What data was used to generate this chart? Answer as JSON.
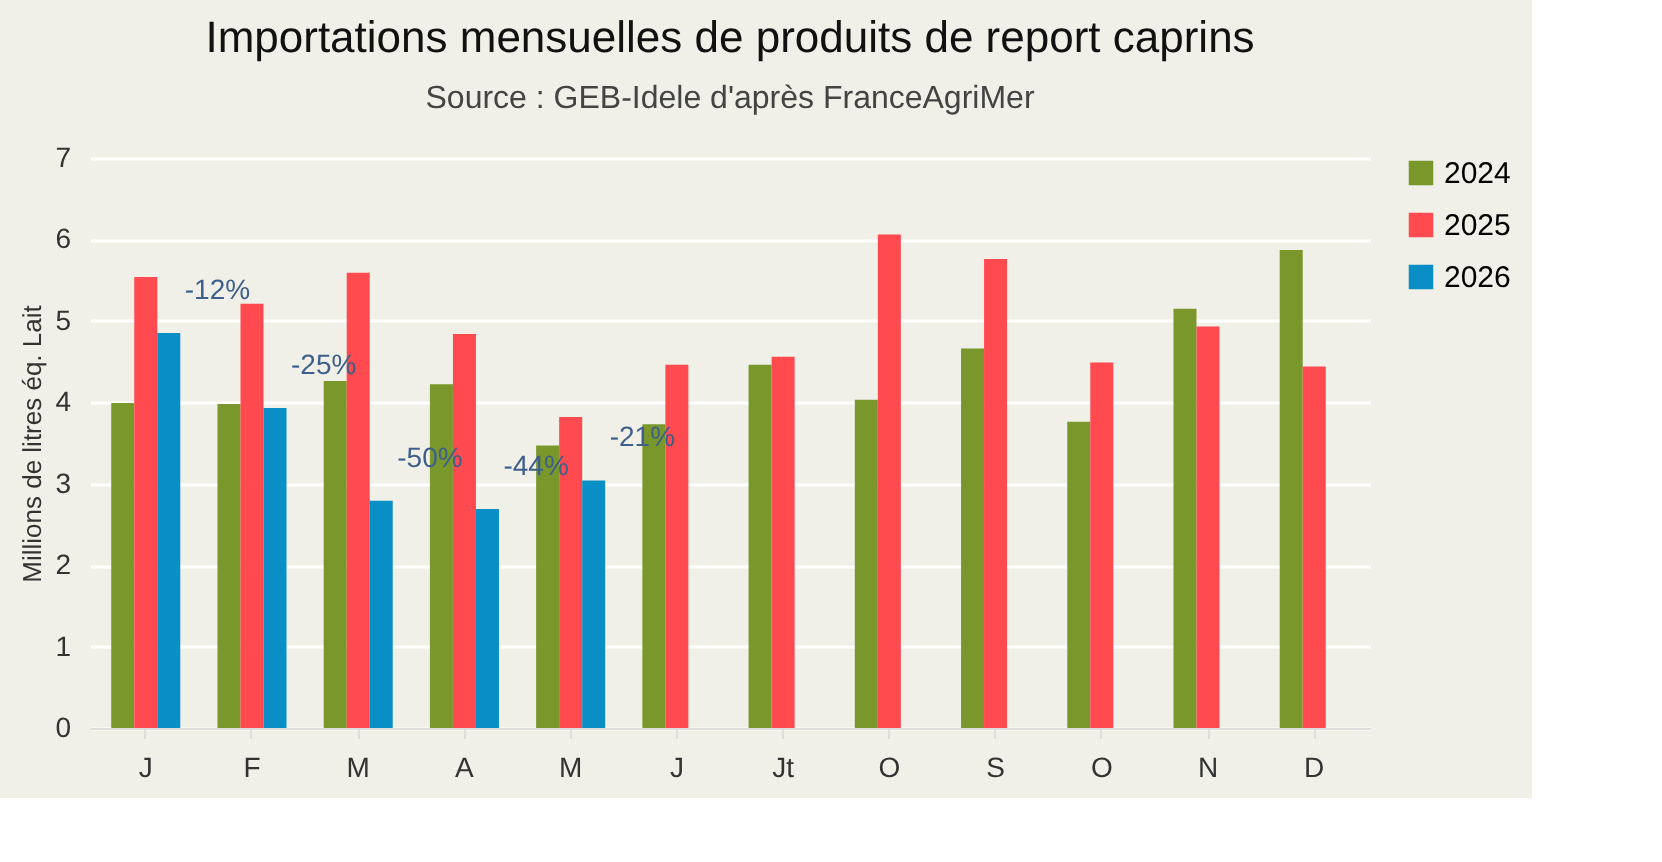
{
  "chart_data": {
    "type": "bar",
    "title": "Importations mensuelles de produits de report caprins",
    "subtitle": "Source : GEB-Idele d'après FranceAgriMer",
    "ylabel": "Millions de litres éq. Lait",
    "categories": [
      "J",
      "F",
      "M",
      "A",
      "M",
      "J",
      "Jt",
      "O",
      "S",
      "O",
      "N",
      "D"
    ],
    "series": [
      {
        "name": "2024",
        "color": "#7a972b",
        "values": [
          3.99,
          3.98,
          4.26,
          4.22,
          3.47,
          3.73,
          4.46,
          4.03,
          4.66,
          3.76,
          5.15,
          5.87
        ]
      },
      {
        "name": "2025",
        "color": "#ff4a50",
        "values": [
          5.54,
          5.21,
          5.59,
          4.84,
          3.82,
          4.46,
          4.56,
          6.06,
          5.76,
          4.49,
          4.93,
          4.44
        ]
      },
      {
        "name": "2026",
        "color": "#0a8ec6",
        "values": [
          4.85,
          3.93,
          2.79,
          2.69,
          3.04,
          null,
          null,
          null,
          null,
          null,
          null,
          null
        ]
      }
    ],
    "annotations": [
      "-12%",
      "-25%",
      "-50%",
      "-44%",
      "-21%"
    ],
    "ylim": [
      0,
      7
    ],
    "yticks": [
      0,
      1,
      2,
      3,
      4,
      5,
      6,
      7
    ],
    "grid": "y",
    "legend": "right"
  }
}
